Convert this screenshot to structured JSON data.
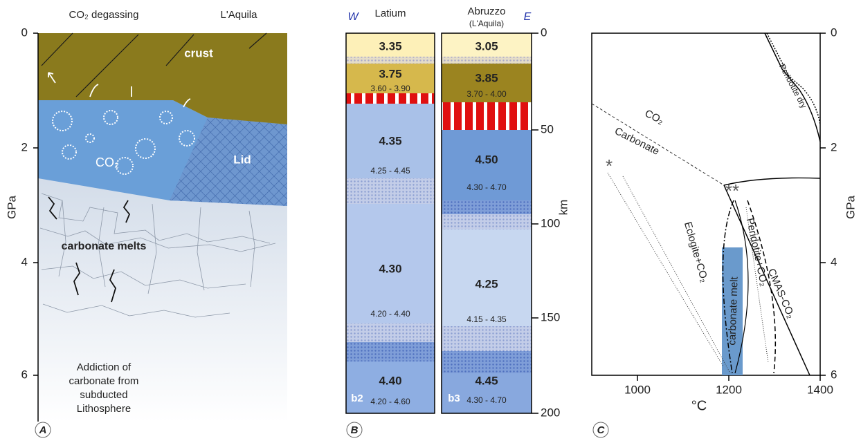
{
  "panel_a": {
    "top_labels": [
      "CO₂ degassing",
      "L'Aquila"
    ],
    "axis_label": "GPa",
    "ticks": [
      0,
      2,
      4,
      6
    ],
    "labels": {
      "crust": "crust",
      "co2": "CO₂",
      "lid": "Lid",
      "melts": "carbonate melts",
      "note": [
        "Addiction of",
        "carbonate from",
        "subducted",
        "Lithosphere"
      ]
    },
    "letter": "A"
  },
  "panel_b": {
    "west": "W",
    "east": "E",
    "axis_label": "km",
    "ticks": [
      0,
      50,
      100,
      150,
      200
    ],
    "columns": [
      {
        "name": "Latium",
        "id": "b2",
        "layers": [
          "3.35",
          "3.75",
          "3.60 - 3.90",
          "4.35",
          "4.25 - 4.45",
          "4.30",
          "4.20 - 4.40",
          "4.40",
          "4.20 - 4.60"
        ]
      },
      {
        "name": "Abruzzo",
        "subname": "(L'Aquila)",
        "id": "b3",
        "layers": [
          "3.05",
          "3.85",
          "3.70 - 4.00",
          "4.50",
          "4.30 - 4.70",
          "4.25",
          "4.15 - 4.35",
          "4.45",
          "4.30 - 4.70"
        ]
      }
    ],
    "letter": "B"
  },
  "panel_c": {
    "x_ticks": [
      1000,
      1200,
      1400
    ],
    "y_ticks": [
      0,
      2,
      4,
      6
    ],
    "x_label": "°C",
    "y_label": "GPa",
    "labels": {
      "peridotite_dry": "Peridotite dry",
      "co2": "CO₂",
      "carbonate": "Carbonate",
      "eclogite": "Eclogite+CO₂",
      "carbonate_melt": "carbonate melt",
      "peridotite_co2": "Peridotite+CO₂",
      "cmas": "CMAS-CO₂",
      "star1": "*",
      "star2": "**"
    },
    "letter": "C"
  }
}
